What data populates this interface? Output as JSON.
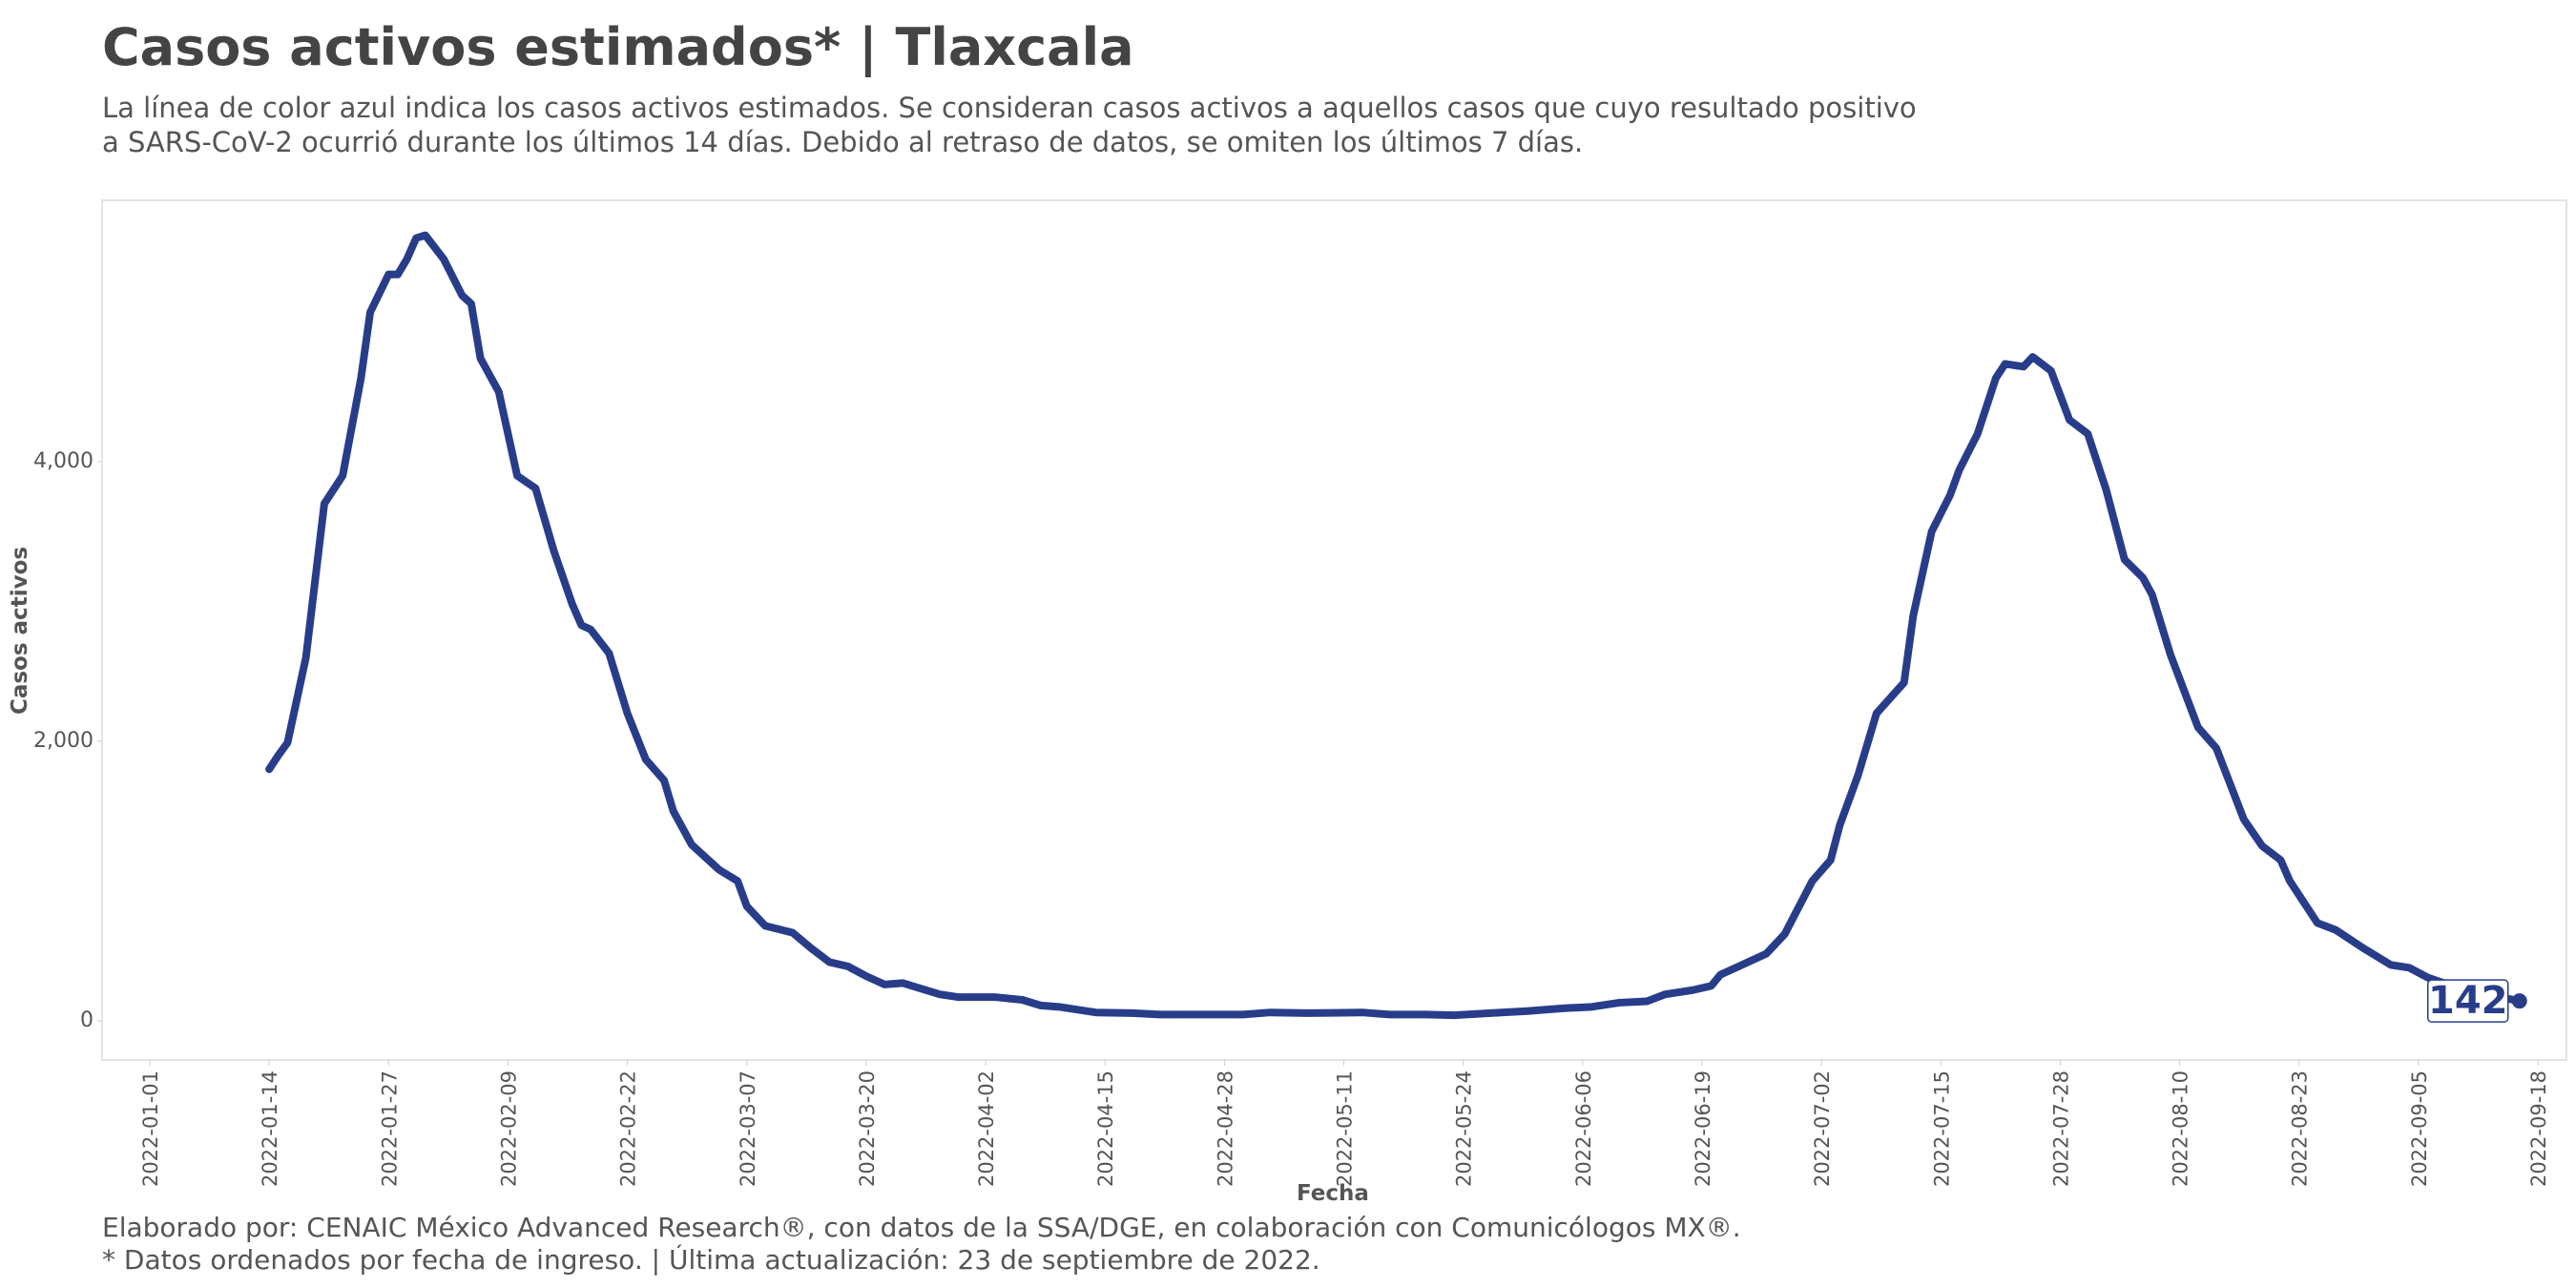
{
  "chart_data": {
    "type": "line",
    "title": "Casos activos estimados* | Tlaxcala",
    "subtitle": [
      "La línea de color azul indica los casos activos estimados. Se consideran casos activos a aquellos casos que cuyo resultado positivo",
      "a SARS-CoV-2 ocurrió durante los últimos 14 días. Debido al retraso de datos, se omiten los últimos 7 días."
    ],
    "x_label": "Fecha",
    "y_label": "Casos activos",
    "notes": [
      "Elaborado por: CENAIC México Advanced Research®, con datos de la SSA/DGE, en colaboración con Comunicólogos MX®.",
      "* Datos ordenados por fecha de ingreso. | Última actualización: 23 de septiembre de 2022."
    ],
    "color": "#283d8a",
    "x": [
      "2022-01-14",
      "2022-01-15",
      "2022-01-16",
      "2022-01-18",
      "2022-01-20",
      "2022-01-22",
      "2022-01-24",
      "2022-01-25",
      "2022-01-27",
      "2022-01-28",
      "2022-01-29",
      "2022-01-30",
      "2022-01-31",
      "2022-02-02",
      "2022-02-04",
      "2022-02-05",
      "2022-02-06",
      "2022-02-08",
      "2022-02-10",
      "2022-02-12",
      "2022-02-14",
      "2022-02-16",
      "2022-02-17",
      "2022-02-18",
      "2022-02-20",
      "2022-02-22",
      "2022-02-24",
      "2022-02-26",
      "2022-02-27",
      "2022-03-01",
      "2022-03-04",
      "2022-03-06",
      "2022-03-07",
      "2022-03-09",
      "2022-03-12",
      "2022-03-14",
      "2022-03-16",
      "2022-03-18",
      "2022-03-20",
      "2022-03-22",
      "2022-03-24",
      "2022-03-26",
      "2022-03-28",
      "2022-03-30",
      "2022-04-03",
      "2022-04-06",
      "2022-04-08",
      "2022-04-10",
      "2022-04-14",
      "2022-04-18",
      "2022-04-21",
      "2022-04-27",
      "2022-04-30",
      "2022-05-03",
      "2022-05-07",
      "2022-05-13",
      "2022-05-16",
      "2022-05-20",
      "2022-05-23",
      "2022-05-27",
      "2022-05-31",
      "2022-06-04",
      "2022-06-07",
      "2022-06-10",
      "2022-06-13",
      "2022-06-15",
      "2022-06-18",
      "2022-06-20",
      "2022-06-21",
      "2022-06-23",
      "2022-06-26",
      "2022-06-28",
      "2022-07-01",
      "2022-07-03",
      "2022-07-04",
      "2022-07-06",
      "2022-07-08",
      "2022-07-11",
      "2022-07-12",
      "2022-07-14",
      "2022-07-16",
      "2022-07-17",
      "2022-07-19",
      "2022-07-21",
      "2022-07-22",
      "2022-07-24",
      "2022-07-25",
      "2022-07-27",
      "2022-07-29",
      "2022-07-31",
      "2022-08-02",
      "2022-08-04",
      "2022-08-06",
      "2022-08-07",
      "2022-08-09",
      "2022-08-12",
      "2022-08-14",
      "2022-08-17",
      "2022-08-19",
      "2022-08-21",
      "2022-08-22",
      "2022-08-25",
      "2022-08-27",
      "2022-08-30",
      "2022-09-02",
      "2022-09-04",
      "2022-09-06",
      "2022-09-10",
      "2022-09-16"
    ],
    "values": [
      1800,
      1900,
      1990,
      2600,
      3700,
      3900,
      4600,
      5070,
      5340,
      5340,
      5450,
      5600,
      5620,
      5450,
      5190,
      5130,
      4740,
      4500,
      3900,
      3810,
      3360,
      2980,
      2830,
      2800,
      2630,
      2200,
      1870,
      1720,
      1500,
      1260,
      1080,
      1000,
      820,
      680,
      630,
      520,
      420,
      390,
      320,
      260,
      270,
      230,
      190,
      170,
      170,
      150,
      110,
      100,
      60,
      55,
      45,
      45,
      45,
      60,
      55,
      60,
      45,
      45,
      40,
      55,
      70,
      90,
      100,
      130,
      140,
      190,
      220,
      250,
      330,
      390,
      480,
      620,
      1000,
      1150,
      1400,
      1760,
      2200,
      2420,
      2900,
      3500,
      3760,
      3940,
      4200,
      4600,
      4700,
      4680,
      4750,
      4650,
      4300,
      4200,
      3800,
      3300,
      3170,
      3050,
      2620,
      2100,
      1950,
      1440,
      1250,
      1150,
      1000,
      700,
      650,
      520,
      400,
      380,
      310,
      220,
      142
    ],
    "xlim": [
      "2022-01-01",
      "2022-09-18"
    ],
    "xticks": [
      "2022-01-01",
      "2022-01-14",
      "2022-01-27",
      "2022-02-09",
      "2022-02-22",
      "2022-03-07",
      "2022-03-20",
      "2022-04-02",
      "2022-04-15",
      "2022-04-28",
      "2022-05-11",
      "2022-05-24",
      "2022-06-06",
      "2022-06-19",
      "2022-07-02",
      "2022-07-15",
      "2022-07-28",
      "2022-08-10",
      "2022-08-23",
      "2022-09-05",
      "2022-09-18"
    ],
    "ylim": [
      -280,
      5870
    ],
    "yticks": [
      0,
      {
        "value": 2000,
        "label": "2,000"
      },
      {
        "value": 4000,
        "label": "4,000"
      }
    ]
  }
}
